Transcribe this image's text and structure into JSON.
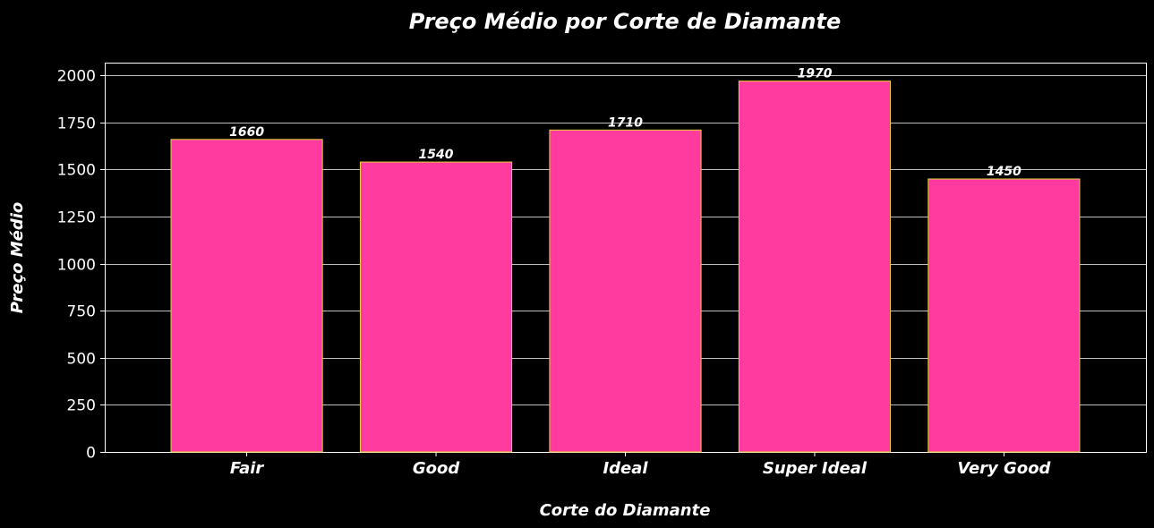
{
  "chart_data": {
    "type": "bar",
    "title": "Preço Médio por Corte de Diamante",
    "xlabel": "Corte do Diamante",
    "ylabel": "Preço Médio",
    "categories": [
      "Fair",
      "Good",
      "Ideal",
      "Super Ideal",
      "Very Good"
    ],
    "values": [
      1660,
      1540,
      1710,
      1970,
      1450
    ],
    "data_labels": [
      "1660",
      "1540",
      "1710",
      "1970",
      "1450"
    ],
    "yticks": [
      0,
      250,
      500,
      750,
      1000,
      1250,
      1500,
      1750,
      2000
    ],
    "ylim": [
      0,
      2068
    ],
    "grid": "horizontal",
    "colors": {
      "background": "#000000",
      "bar_fill": "#ff3ba0",
      "bar_edge": "#e8d23a",
      "grid": "#ffffff",
      "text": "#ffffff"
    }
  }
}
